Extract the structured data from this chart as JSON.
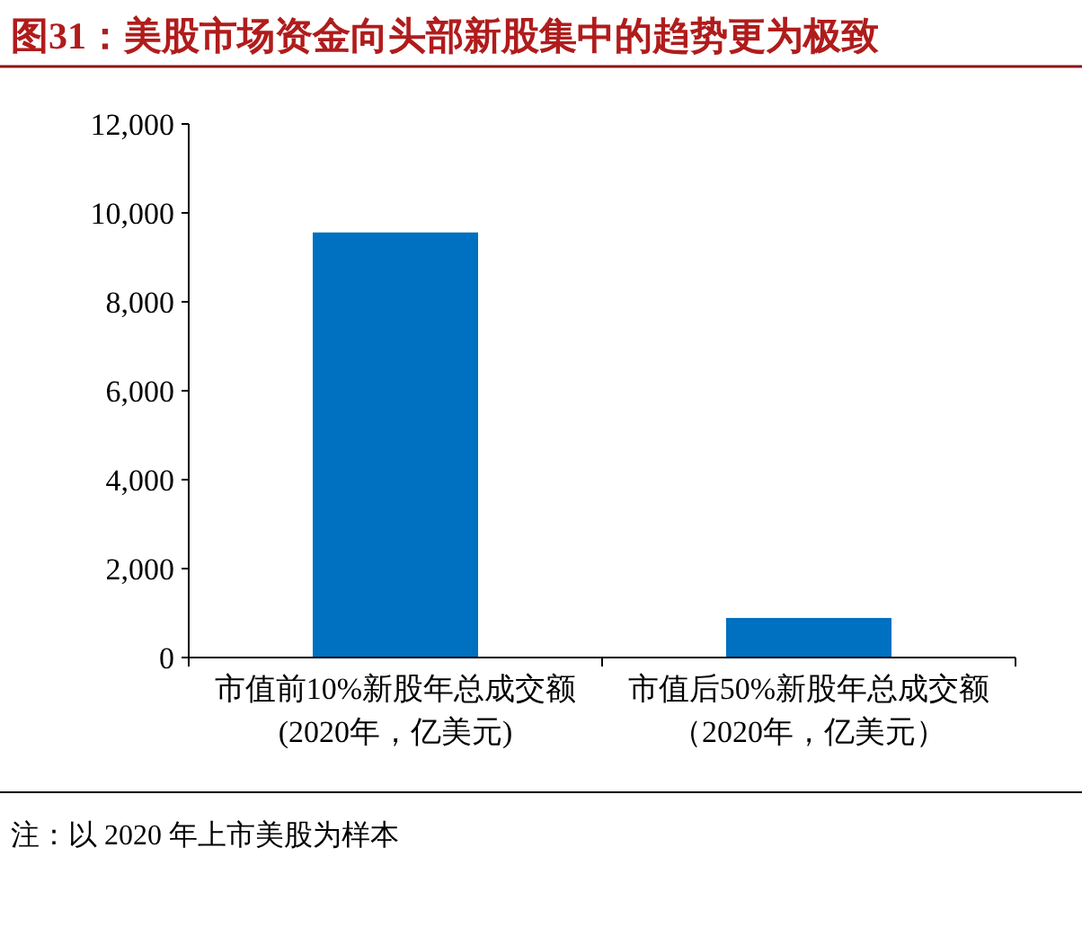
{
  "chart_data": {
    "type": "bar",
    "title": "图31：美股市场资金向头部新股集中的趋势更为极致",
    "categories": [
      "市值前10%新股年总成交额(2020年，亿美元)",
      "市值后50%新股年总成交额（2020年，亿美元）"
    ],
    "values": [
      9560,
      890
    ],
    "color": "#0070c0",
    "ylim": [
      0,
      12000
    ],
    "yticks": [
      {
        "value": 0,
        "label": "0"
      },
      {
        "value": 2000,
        "label": "2,000"
      },
      {
        "value": 4000,
        "label": "4,000"
      },
      {
        "value": 6000,
        "label": "6,000"
      },
      {
        "value": 8000,
        "label": "8,000"
      },
      {
        "value": 10000,
        "label": "10,000"
      },
      {
        "value": 12000,
        "label": "12,000"
      }
    ],
    "grid": false,
    "annotations": [
      "注：以 2020 年上市美股为样本"
    ]
  }
}
